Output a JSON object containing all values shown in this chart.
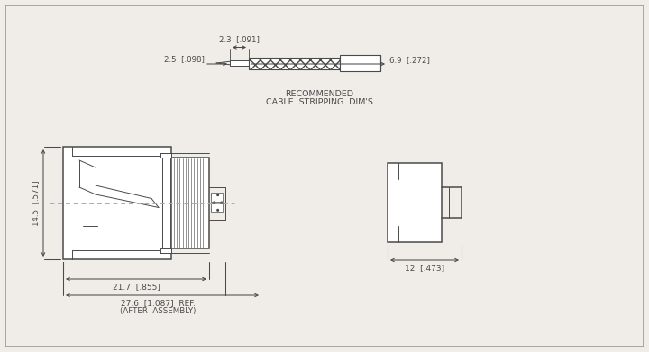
{
  "bg_color": "#f0ede8",
  "line_color": "#4a4a4a",
  "dim_color": "#4a4a4a",
  "text_color": "#4a4a4a",
  "cable_strip": {
    "label_line1": "RECOMMENDED",
    "label_line2": "CABLE  STRIPPING  DIM'S",
    "dim_23": "2.3  [.091]",
    "dim_25": "2.5  [.098]",
    "dim_69": "6.9  [.272]"
  },
  "main_connector": {
    "dim_145": "14.5  [.571]",
    "dim_217": "21.7  [.855]",
    "dim_276": "27.6  [1.087]  REF.",
    "after_assembly": "(AFTER  ASSEMBLY)"
  },
  "insert": {
    "dim_12": "12  [.473]"
  }
}
